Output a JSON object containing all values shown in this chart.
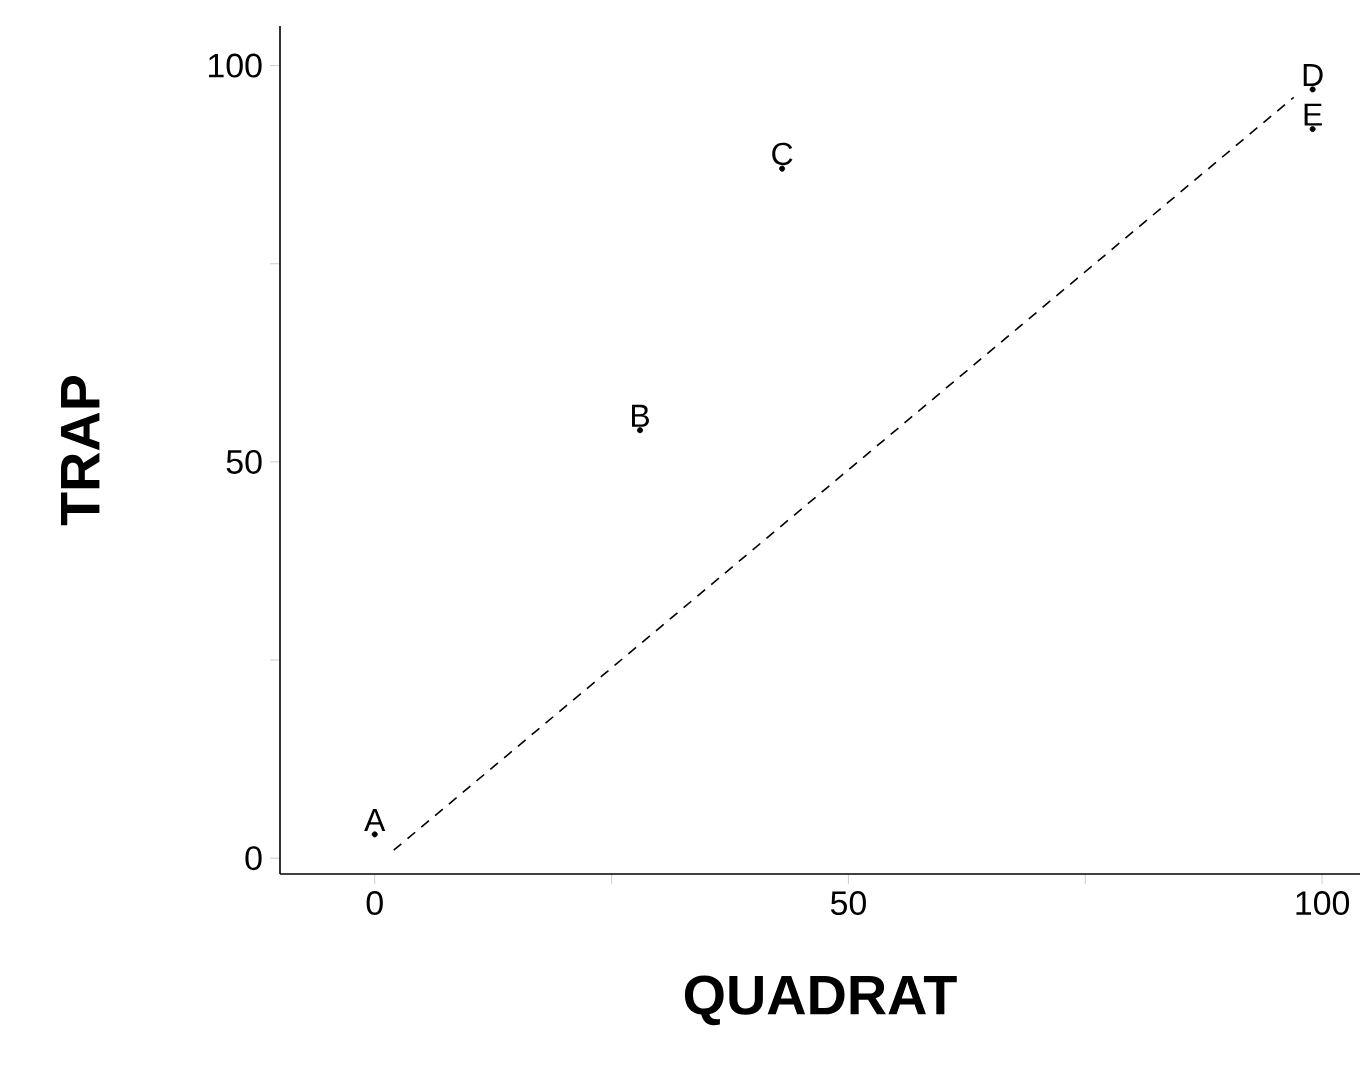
{
  "chart_data": {
    "type": "scatter",
    "xlabel": "QUADRAT",
    "ylabel": "TRAP",
    "xlim": [
      -10,
      104
    ],
    "ylim": [
      -2,
      105
    ],
    "xticks": [
      0,
      {
        "value": 25,
        "label": null
      },
      50,
      {
        "value": 75,
        "label": null
      },
      100
    ],
    "yticks": [
      0,
      {
        "value": 25,
        "label": null
      },
      50,
      {
        "value": 75,
        "label": null
      },
      100
    ],
    "marker": "circle",
    "series": [
      {
        "name": "A",
        "color": "#000000",
        "x": [
          0
        ],
        "values": [
          3
        ]
      },
      {
        "name": "B",
        "color": "#000000",
        "x": [
          28
        ],
        "values": [
          54
        ]
      },
      {
        "name": "C",
        "color": "#000000",
        "x": [
          43
        ],
        "values": [
          87
        ]
      },
      {
        "name": "D",
        "color": "#000000",
        "x": [
          99
        ],
        "values": [
          97
        ]
      },
      {
        "name": "E",
        "color": "#000000",
        "x": [
          99
        ],
        "values": [
          92
        ]
      },
      {
        "type": "line",
        "line_style": "dashed",
        "marker": "none",
        "color": "#000000",
        "x": [
          2,
          97
        ],
        "values": [
          1,
          96
        ]
      }
    ]
  }
}
